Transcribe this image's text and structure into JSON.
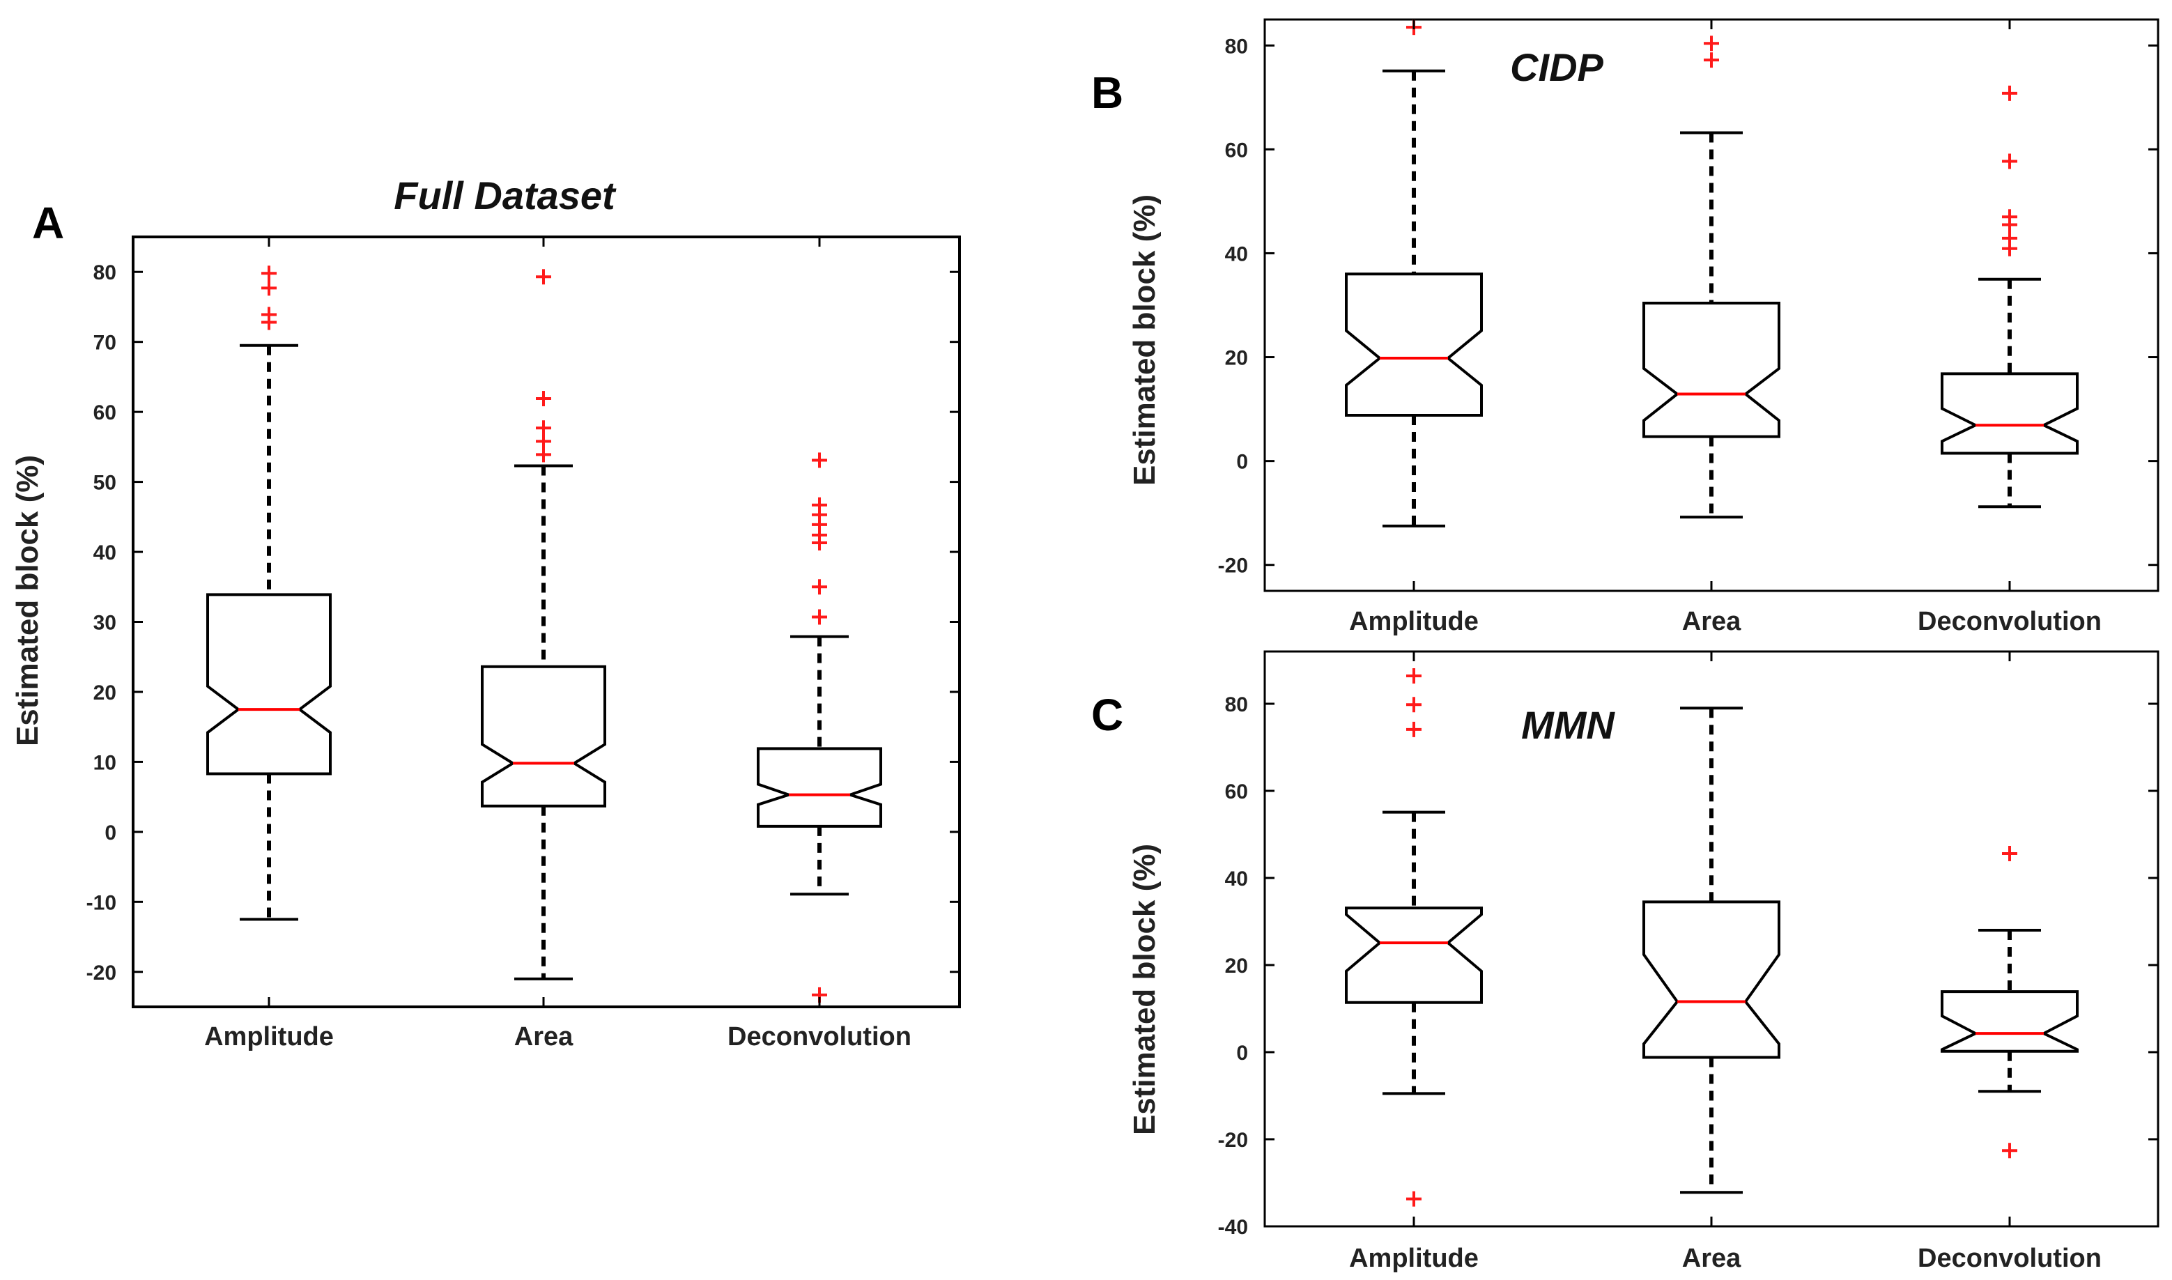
{
  "colors": {
    "box": "#000000",
    "median": "#ff0000",
    "outlier": "#ff1a1a",
    "text": "#222222"
  },
  "chart_data": [
    {
      "type": "boxplot",
      "panel": "A",
      "title": "Full Dataset",
      "ylabel": "Estimated block (%)",
      "xlabel": "",
      "ylim": [
        -25,
        85
      ],
      "yticks": [
        -20,
        -10,
        0,
        10,
        20,
        30,
        40,
        50,
        60,
        70,
        80
      ],
      "categories": [
        "Amplitude",
        "Area",
        "Deconvolution"
      ],
      "boxes": [
        {
          "name": "Amplitude",
          "whisker_low": -12.5,
          "q1": 8.3,
          "median": 17.5,
          "q3": 33.9,
          "whisker_high": 69.5,
          "notch_low": 14.2,
          "notch_high": 20.8,
          "outliers": [
            72.8,
            73.9,
            77.7,
            79.8
          ]
        },
        {
          "name": "Area",
          "whisker_low": -21.0,
          "q1": 3.7,
          "median": 9.8,
          "q3": 23.6,
          "whisker_high": 52.3,
          "notch_low": 7.1,
          "notch_high": 12.5,
          "outliers": [
            53.9,
            55.8,
            57.7,
            61.9,
            79.3
          ]
        },
        {
          "name": "Deconvolution",
          "whisker_low": -8.9,
          "q1": 0.8,
          "median": 5.3,
          "q3": 11.9,
          "whisker_high": 27.9,
          "notch_low": 3.9,
          "notch_high": 6.8,
          "outliers": [
            30.7,
            35.0,
            41.3,
            42.4,
            43.9,
            45.3,
            46.7,
            53.1,
            -23.3
          ]
        }
      ]
    },
    {
      "type": "boxplot",
      "panel": "B",
      "title": "CIDP",
      "ylabel": "Estimated block (%)",
      "xlabel": "",
      "ylim": [
        -25,
        85
      ],
      "yticks": [
        -20,
        0,
        20,
        40,
        60,
        80
      ],
      "categories": [
        "Amplitude",
        "Area",
        "Deconvolution"
      ],
      "boxes": [
        {
          "name": "Amplitude",
          "whisker_low": -12.5,
          "q1": 8.8,
          "median": 19.8,
          "q3": 36.0,
          "whisker_high": 75.1,
          "notch_low": 14.6,
          "notch_high": 25.1,
          "outliers": [
            83.5
          ]
        },
        {
          "name": "Area",
          "whisker_low": -10.8,
          "q1": 4.7,
          "median": 12.9,
          "q3": 30.4,
          "whisker_high": 63.2,
          "notch_low": 7.8,
          "notch_high": 17.8,
          "outliers": [
            77.2,
            80.4
          ]
        },
        {
          "name": "Deconvolution",
          "whisker_low": -8.8,
          "q1": 1.5,
          "median": 6.9,
          "q3": 16.8,
          "whisker_high": 35.0,
          "notch_low": 3.8,
          "notch_high": 10.1,
          "outliers": [
            40.9,
            42.9,
            45.5,
            47.0,
            57.7,
            70.8
          ]
        }
      ]
    },
    {
      "type": "boxplot",
      "panel": "C",
      "title": "MMN",
      "ylabel": "Estimated block (%)",
      "xlabel": "",
      "ylim": [
        -40,
        92
      ],
      "yticks": [
        -40,
        -20,
        0,
        20,
        40,
        60,
        80
      ],
      "categories": [
        "Amplitude",
        "Area",
        "Deconvolution"
      ],
      "boxes": [
        {
          "name": "Amplitude",
          "whisker_low": -9.5,
          "q1": 11.4,
          "median": 25.1,
          "q3": 33.1,
          "whisker_high": 55.1,
          "notch_low": 18.6,
          "notch_high": 31.6,
          "outliers": [
            74.1,
            79.8,
            86.4,
            -33.7
          ]
        },
        {
          "name": "Area",
          "whisker_low": -32.2,
          "q1": -1.2,
          "median": 11.6,
          "q3": 34.5,
          "whisker_high": 79.0,
          "notch_low": 1.9,
          "notch_high": 22.4,
          "outliers": []
        },
        {
          "name": "Deconvolution",
          "whisker_low": -9.0,
          "q1": 0.2,
          "median": 4.3,
          "q3": 13.9,
          "whisker_high": 28.0,
          "notch_low": 0.6,
          "notch_high": 8.3,
          "outliers": [
            45.6,
            -22.6
          ]
        }
      ]
    }
  ]
}
